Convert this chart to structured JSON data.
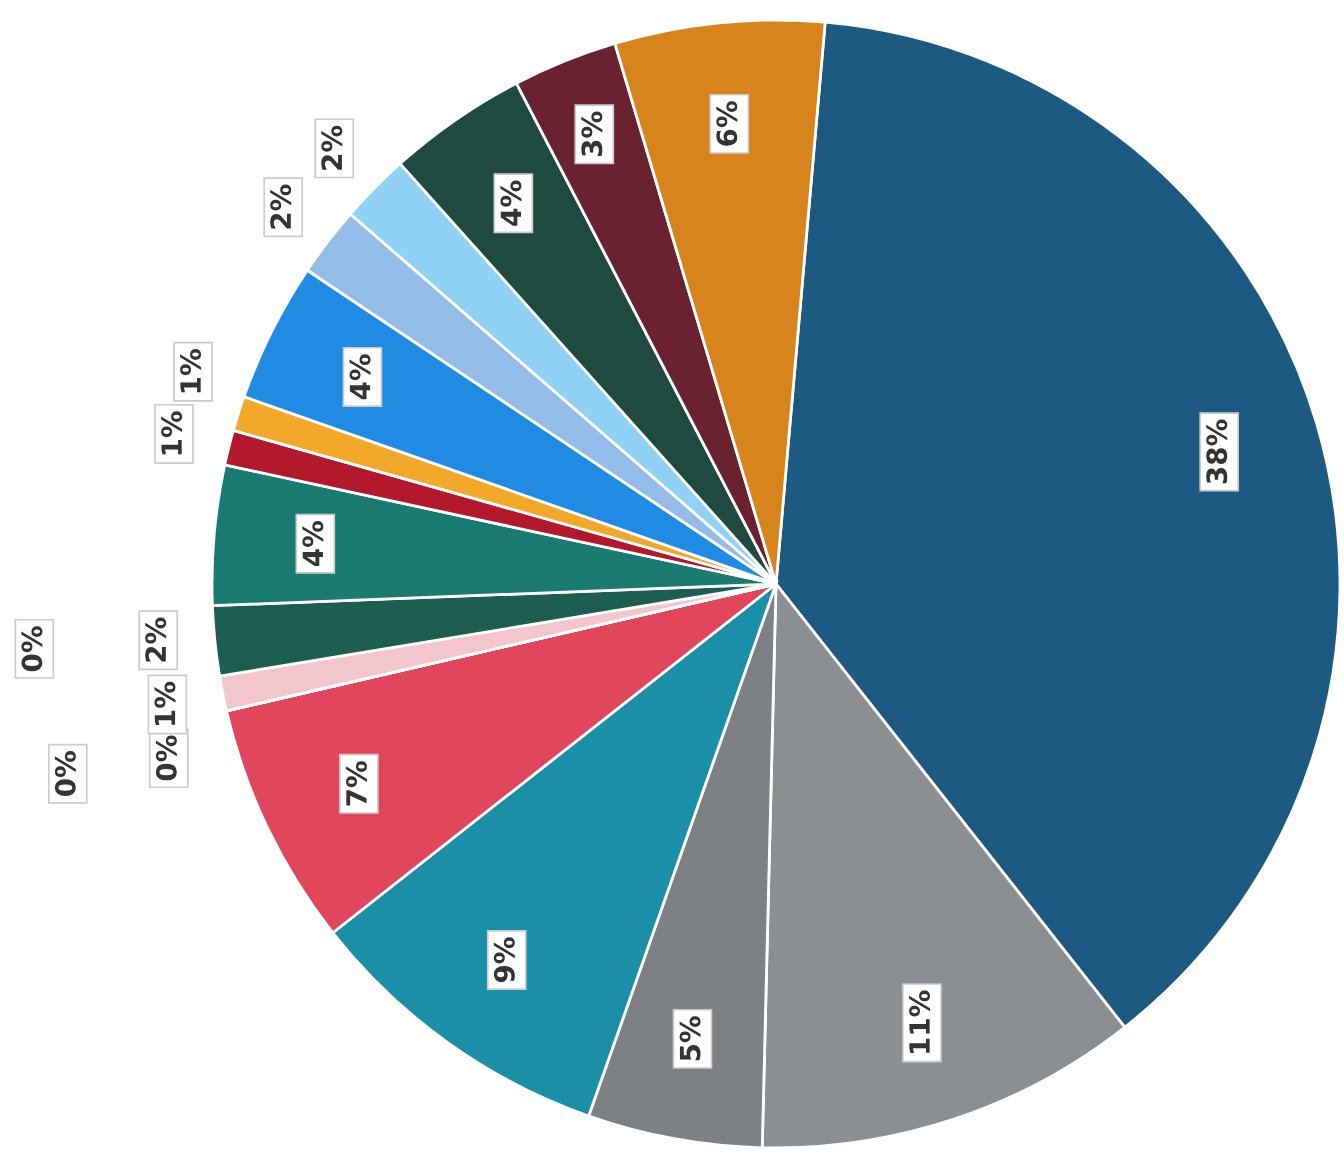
{
  "chart_data": {
    "type": "pie",
    "categories": [
      null,
      null,
      null,
      null,
      null,
      null,
      null,
      null,
      null,
      null,
      null,
      null,
      null,
      null,
      null,
      null,
      null,
      null,
      null
    ],
    "values": [
      38,
      11,
      5,
      9,
      7,
      0,
      0,
      0,
      1,
      2,
      4,
      1,
      1,
      4,
      2,
      2,
      4,
      3,
      6
    ],
    "colors": [
      "#1d5a82",
      "#8c8f91",
      "#7d8184",
      "#1a8fa6",
      "#e2465c",
      "#f4c9cf",
      "#f0b3bc",
      "#f3d3d8",
      "#f2c6cc",
      "#1d5e52",
      "#1a7c70",
      "#b3182c",
      "#f3a82a",
      "#1f8be3",
      "#94bdea",
      "#8fd2f6",
      "#1e4a40",
      "#6b2230",
      "#d8841c"
    ],
    "value_labels": [
      "38%",
      "11%",
      "5%",
      "9%",
      "7%",
      "0%",
      "0%",
      "0%",
      "1%",
      "2%",
      "4%",
      "1%",
      "1%",
      "4%",
      "2%",
      "2%",
      "4%",
      "3%",
      "6%"
    ]
  }
}
